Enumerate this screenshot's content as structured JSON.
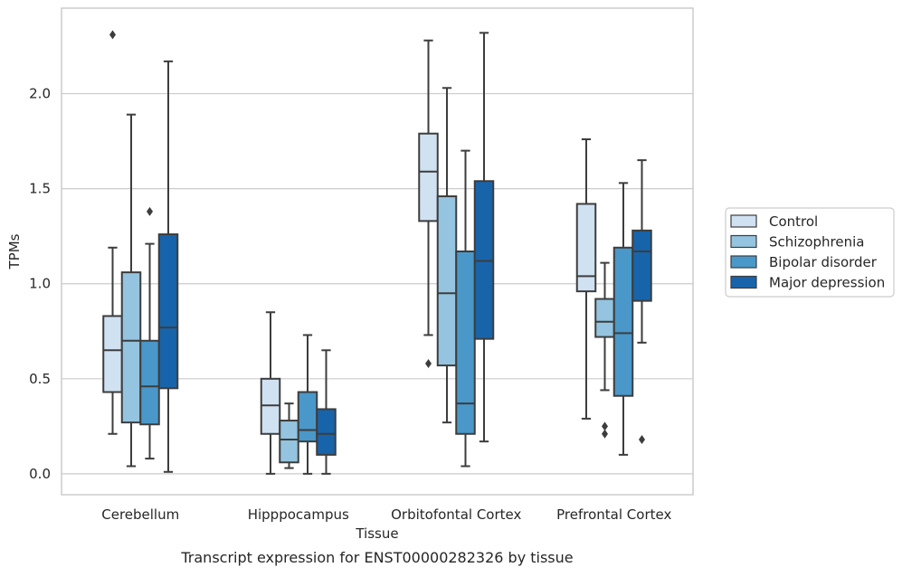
{
  "chart_data": {
    "type": "boxplot",
    "xlabel": "Tissue",
    "ylabel": "TPMs",
    "caption": "Transcript expression for ENST00000282326 by tissue",
    "categories": [
      "Cerebellum",
      "Hipppocampus",
      "Orbitofontal Cortex",
      "Prefrontal Cortex"
    ],
    "ylim": [
      -0.11,
      2.45
    ],
    "yticks": [
      0.0,
      0.5,
      1.0,
      1.5,
      2.0
    ],
    "ytick_labels": [
      "0.0",
      "0.5",
      "1.0",
      "1.5",
      "2.0"
    ],
    "grid": "horizontal",
    "legend_position": "right",
    "series": [
      {
        "name": "Control",
        "color": "#d0e1f2",
        "boxes": [
          {
            "whisker_low": 0.21,
            "q1": 0.43,
            "median": 0.65,
            "q3": 0.83,
            "whisker_high": 1.19,
            "outliers": [
              2.31
            ]
          },
          {
            "whisker_low": 0.0,
            "q1": 0.21,
            "median": 0.36,
            "q3": 0.5,
            "whisker_high": 0.85,
            "outliers": []
          },
          {
            "whisker_low": 0.73,
            "q1": 1.33,
            "median": 1.59,
            "q3": 1.79,
            "whisker_high": 2.28,
            "outliers": [
              0.58
            ]
          },
          {
            "whisker_low": 0.29,
            "q1": 0.96,
            "median": 1.04,
            "q3": 1.42,
            "whisker_high": 1.76,
            "outliers": []
          }
        ]
      },
      {
        "name": "Schizophrenia",
        "color": "#94c4df",
        "boxes": [
          {
            "whisker_low": 0.04,
            "q1": 0.27,
            "median": 0.7,
            "q3": 1.06,
            "whisker_high": 1.89,
            "outliers": []
          },
          {
            "whisker_low": 0.03,
            "q1": 0.06,
            "median": 0.18,
            "q3": 0.28,
            "whisker_high": 0.37,
            "outliers": []
          },
          {
            "whisker_low": 0.27,
            "q1": 0.57,
            "median": 0.95,
            "q3": 1.46,
            "whisker_high": 2.03,
            "outliers": []
          },
          {
            "whisker_low": 0.44,
            "q1": 0.72,
            "median": 0.8,
            "q3": 0.92,
            "whisker_high": 1.11,
            "outliers": [
              0.25,
              0.21
            ]
          }
        ]
      },
      {
        "name": "Bipolar disorder",
        "color": "#4a98c9",
        "boxes": [
          {
            "whisker_low": 0.08,
            "q1": 0.26,
            "median": 0.46,
            "q3": 0.7,
            "whisker_high": 1.21,
            "outliers": [
              1.38
            ]
          },
          {
            "whisker_low": 0.0,
            "q1": 0.17,
            "median": 0.23,
            "q3": 0.43,
            "whisker_high": 0.73,
            "outliers": []
          },
          {
            "whisker_low": 0.04,
            "q1": 0.21,
            "median": 0.37,
            "q3": 1.17,
            "whisker_high": 1.7,
            "outliers": []
          },
          {
            "whisker_low": 0.1,
            "q1": 0.41,
            "median": 0.74,
            "q3": 1.19,
            "whisker_high": 1.53,
            "outliers": []
          }
        ]
      },
      {
        "name": "Major depression",
        "color": "#1764ab",
        "boxes": [
          {
            "whisker_low": 0.01,
            "q1": 0.45,
            "median": 0.77,
            "q3": 1.26,
            "whisker_high": 2.17,
            "outliers": []
          },
          {
            "whisker_low": 0.0,
            "q1": 0.1,
            "median": 0.21,
            "q3": 0.34,
            "whisker_high": 0.65,
            "outliers": []
          },
          {
            "whisker_low": 0.17,
            "q1": 0.71,
            "median": 1.12,
            "q3": 1.54,
            "whisker_high": 2.32,
            "outliers": []
          },
          {
            "whisker_low": 0.69,
            "q1": 0.91,
            "median": 1.17,
            "q3": 1.28,
            "whisker_high": 1.65,
            "outliers": [
              0.18
            ]
          }
        ]
      }
    ]
  }
}
